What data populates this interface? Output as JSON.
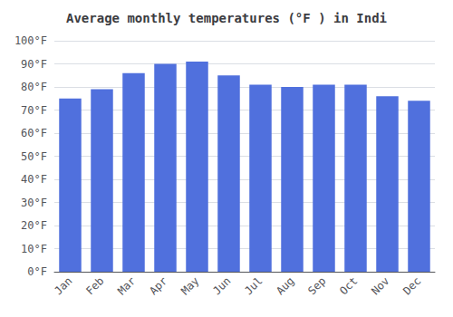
{
  "chart_data": {
    "type": "bar",
    "title": "Average monthly temperatures (°F ) in Indi",
    "categories": [
      "Jan",
      "Feb",
      "Mar",
      "Apr",
      "May",
      "Jun",
      "Jul",
      "Aug",
      "Sep",
      "Oct",
      "Nov",
      "Dec"
    ],
    "values": [
      75,
      79,
      86,
      90,
      91,
      85,
      81,
      80,
      81,
      81,
      76,
      74
    ],
    "ylim": [
      0,
      100
    ],
    "yticks": [
      {
        "value": 0,
        "label": "0°F"
      },
      {
        "value": 10,
        "label": "10°F"
      },
      {
        "value": 20,
        "label": "20°F"
      },
      {
        "value": 30,
        "label": "30°F"
      },
      {
        "value": 40,
        "label": "40°F"
      },
      {
        "value": 50,
        "label": "50°F"
      },
      {
        "value": 60,
        "label": "60°F"
      },
      {
        "value": 70,
        "label": "70°F"
      },
      {
        "value": 80,
        "label": "80°F"
      },
      {
        "value": 90,
        "label": "90°F"
      },
      {
        "value": 100,
        "label": "100°F"
      }
    ],
    "grid": true
  }
}
